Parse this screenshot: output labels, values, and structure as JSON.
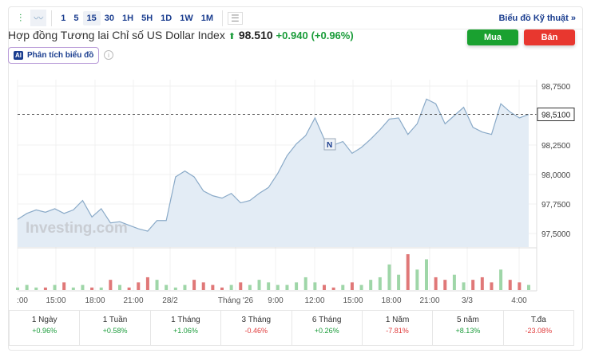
{
  "toolbar": {
    "intervals": [
      "1",
      "5",
      "15",
      "30",
      "1H",
      "5H",
      "1D",
      "1W",
      "1M"
    ],
    "active": "15",
    "technical_link": "Biểu đồ Kỹ thuật »"
  },
  "header": {
    "title": "Hợp đồng Tương lai Chỉ số US Dollar Index",
    "price": "98.510",
    "change": "+0.940",
    "change_pct": "(+0.96%)",
    "buy": "Mua",
    "sell": "Bán",
    "ai_badge": "AI",
    "ai_label": "Phân tích biểu đồ",
    "info": "i"
  },
  "colors": {
    "up": "#1a9c3a",
    "down": "#e03a3a",
    "buy": "#1aa130",
    "sell": "#e8372f",
    "line": "#8aaac8",
    "area": "#e3ecf5"
  },
  "chart_data": {
    "type": "area",
    "watermark": "Investing.com",
    "current_label": "98,5100",
    "y_ticks": [
      "98,7500",
      "98,2500",
      "98,0000",
      "97,7500",
      "97,5000"
    ],
    "y_tick_values": [
      98.75,
      98.25,
      98.0,
      97.75,
      97.5
    ],
    "ylim": [
      97.4,
      98.8
    ],
    "x_ticks": [
      ":00",
      "15:00",
      "18:00",
      "21:00",
      "28/2",
      "Tháng '26",
      "9:00",
      "12:00",
      "15:00",
      "18:00",
      "21:00",
      "3/3",
      "4:00"
    ],
    "annotation": "N",
    "values": [
      97.62,
      97.67,
      97.7,
      97.68,
      97.71,
      97.67,
      97.7,
      97.78,
      97.64,
      97.71,
      97.59,
      97.6,
      97.57,
      97.54,
      97.52,
      97.61,
      97.61,
      97.98,
      98.03,
      97.98,
      97.86,
      97.82,
      97.8,
      97.84,
      97.76,
      97.78,
      97.84,
      97.89,
      98.01,
      98.16,
      98.26,
      98.33,
      98.48,
      98.3,
      98.25,
      98.28,
      98.18,
      98.23,
      98.3,
      98.38,
      98.47,
      98.48,
      98.34,
      98.43,
      98.64,
      98.6,
      98.43,
      98.5,
      98.57,
      98.4,
      98.36,
      98.34,
      98.6,
      98.53,
      98.48,
      98.51
    ],
    "volume": [
      1,
      2,
      1,
      1,
      2,
      3,
      1,
      2,
      1,
      1,
      4,
      2,
      1,
      3,
      5,
      4,
      2,
      1,
      2,
      4,
      3,
      2,
      1,
      2,
      3,
      2,
      4,
      3,
      2,
      2,
      3,
      5,
      3,
      2,
      1,
      2,
      3,
      2,
      4,
      5,
      10,
      6,
      14,
      8,
      12,
      5,
      4,
      6,
      3,
      4,
      5,
      3,
      8,
      4,
      3,
      2
    ]
  },
  "periods": [
    {
      "label": "1 Ngày",
      "value": "+0.96%",
      "dir": "up"
    },
    {
      "label": "1 Tuần",
      "value": "+0.58%",
      "dir": "up"
    },
    {
      "label": "1 Tháng",
      "value": "+1.06%",
      "dir": "up"
    },
    {
      "label": "3 Tháng",
      "value": "-0.46%",
      "dir": "down"
    },
    {
      "label": "6 Tháng",
      "value": "+0.26%",
      "dir": "up"
    },
    {
      "label": "1 Năm",
      "value": "-7.81%",
      "dir": "down"
    },
    {
      "label": "5 năm",
      "value": "+8.13%",
      "dir": "up"
    },
    {
      "label": "T.đa",
      "value": "-23.08%",
      "dir": "down"
    }
  ]
}
